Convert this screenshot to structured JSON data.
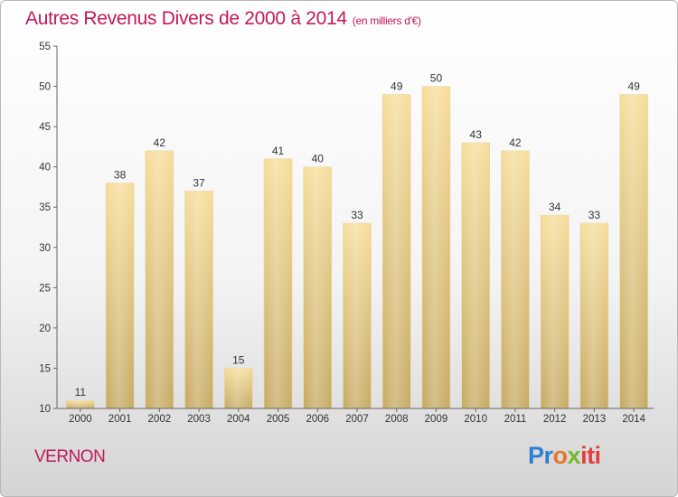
{
  "header": {
    "title": "Autres Revenus Divers de 2000 à 2014",
    "subtitle": "(en milliers d'€)"
  },
  "footer": {
    "location": "VERNON",
    "brand_parts": [
      "Pr",
      "o",
      "x",
      "iti"
    ]
  },
  "colors": {
    "title": "#c2185b",
    "bar_top": "#f7dd9a",
    "bar_bottom": "#c6aa63",
    "axis": "#666666",
    "label": "#333333"
  },
  "chart_data": {
    "type": "bar",
    "categories": [
      "2000",
      "2001",
      "2002",
      "2003",
      "2004",
      "2005",
      "2006",
      "2007",
      "2008",
      "2009",
      "2010",
      "2011",
      "2012",
      "2013",
      "2014"
    ],
    "values": [
      11,
      38,
      42,
      37,
      15,
      41,
      40,
      33,
      49,
      50,
      43,
      42,
      34,
      33,
      49
    ],
    "ylim": [
      10,
      55
    ],
    "yticks": [
      10,
      15,
      20,
      25,
      30,
      35,
      40,
      45,
      50,
      55
    ],
    "grid": false,
    "data_labels": true
  }
}
